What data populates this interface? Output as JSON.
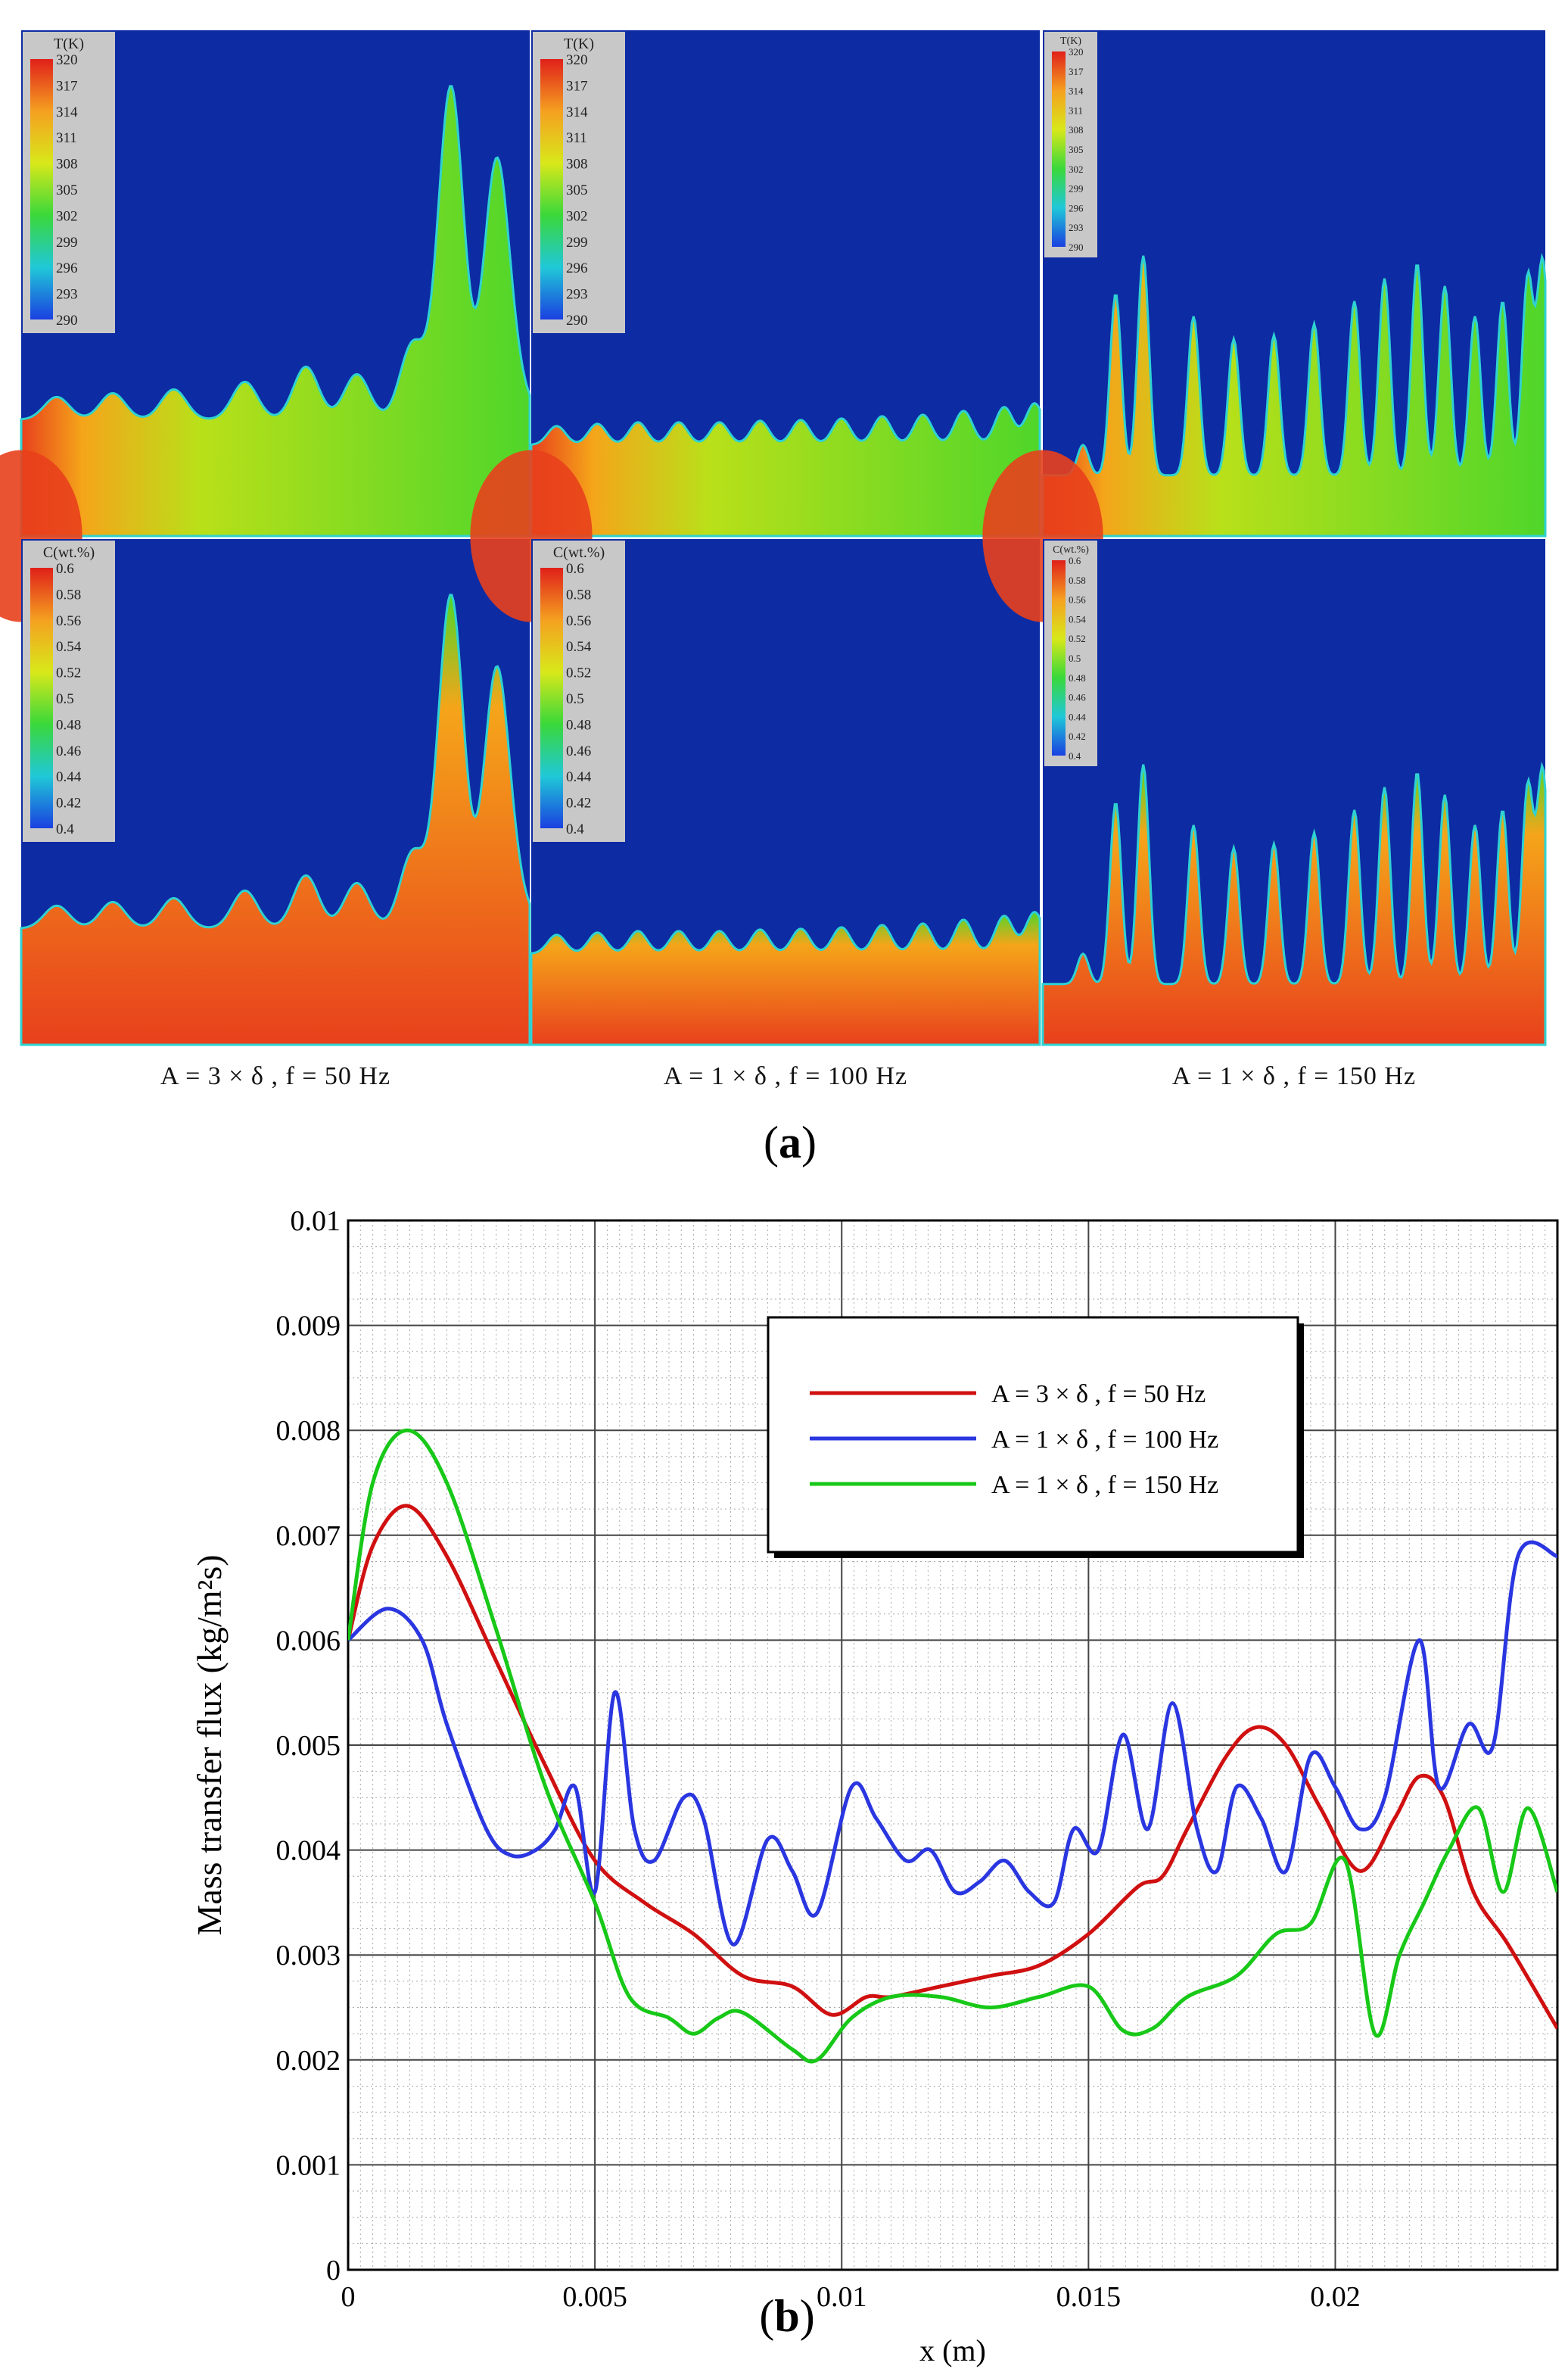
{
  "panel_a": {
    "label": "a",
    "columns": [
      {
        "caption": "A = 3 × δ , f = 50 Hz",
        "style": "large"
      },
      {
        "caption": "A = 1 × δ , f = 100 Hz",
        "style": "regular"
      },
      {
        "caption": "A = 1 × δ , f = 150 Hz",
        "style": "fine"
      }
    ],
    "temperature_legend": {
      "title": "T(K)",
      "levels": [
        "320",
        "317",
        "314",
        "311",
        "308",
        "305",
        "302",
        "299",
        "296",
        "293",
        "290"
      ]
    },
    "concentration_legend": {
      "title": "C(wt.%)",
      "levels": [
        "0.6",
        "0.58",
        "0.56",
        "0.54",
        "0.52",
        "0.5",
        "0.48",
        "0.46",
        "0.44",
        "0.42",
        "0.4"
      ]
    },
    "colors": {
      "background": "#0d2ba3",
      "hot": "#e8401c",
      "warm": "#f5a51a",
      "mid": "#b9e019",
      "film": "#4fd62a",
      "edge": "#2fd2d2"
    }
  },
  "panel_b": {
    "label": "b"
  },
  "chart_data": {
    "type": "line",
    "title": "",
    "xlabel": "x (m)",
    "ylabel": "Mass transfer flux (kg/m²s)",
    "xlim": [
      0,
      0.0245
    ],
    "ylim": [
      0,
      0.01
    ],
    "xticks": [
      0,
      0.005,
      0.01,
      0.015,
      0.02
    ],
    "xtick_labels": [
      "0",
      "0.005",
      "0.01",
      "0.015",
      "0.02"
    ],
    "yticks": [
      0,
      0.001,
      0.002,
      0.003,
      0.004,
      0.005,
      0.006,
      0.007,
      0.008,
      0.009,
      0.01
    ],
    "ytick_labels": [
      "0",
      "0.001",
      "0.002",
      "0.003",
      "0.004",
      "0.005",
      "0.006",
      "0.007",
      "0.008",
      "0.009",
      "0.01"
    ],
    "grid": true,
    "legend_position": "top-right",
    "series": [
      {
        "name": "A = 3 × δ , f = 50 Hz",
        "color": "#d01010",
        "x": [
          0,
          0.0005,
          0.0012,
          0.002,
          0.003,
          0.004,
          0.005,
          0.006,
          0.007,
          0.008,
          0.009,
          0.0098,
          0.0105,
          0.011,
          0.012,
          0.013,
          0.014,
          0.015,
          0.016,
          0.0165,
          0.017,
          0.0178,
          0.0184,
          0.019,
          0.0197,
          0.0205,
          0.0212,
          0.0217,
          0.0222,
          0.0228,
          0.0235,
          0.0245
        ],
        "y": [
          0.006,
          0.0069,
          0.00728,
          0.0068,
          0.0058,
          0.0048,
          0.0039,
          0.0035,
          0.0032,
          0.0028,
          0.0027,
          0.00243,
          0.0026,
          0.0026,
          0.0027,
          0.0028,
          0.0029,
          0.0032,
          0.00365,
          0.00375,
          0.0042,
          0.0049,
          0.00517,
          0.005,
          0.0044,
          0.0038,
          0.0043,
          0.0047,
          0.0045,
          0.0036,
          0.0031,
          0.0023
        ]
      },
      {
        "name": "A = 1 × δ , f = 100 Hz",
        "color": "#2a36e0",
        "x": [
          0,
          0.0008,
          0.0015,
          0.002,
          0.0028,
          0.0033,
          0.0038,
          0.0042,
          0.0046,
          0.005,
          0.0054,
          0.0058,
          0.0062,
          0.0068,
          0.0072,
          0.0078,
          0.0085,
          0.009,
          0.0095,
          0.0102,
          0.0107,
          0.0113,
          0.0118,
          0.0123,
          0.0128,
          0.0133,
          0.0138,
          0.0143,
          0.0147,
          0.0152,
          0.0157,
          0.0162,
          0.0167,
          0.0172,
          0.0176,
          0.018,
          0.0185,
          0.019,
          0.0195,
          0.02,
          0.0205,
          0.021,
          0.0217,
          0.0221,
          0.0227,
          0.0232,
          0.0237,
          0.0245
        ],
        "y": [
          0.006,
          0.0063,
          0.006,
          0.0052,
          0.0042,
          0.00395,
          0.004,
          0.0042,
          0.0046,
          0.0036,
          0.0055,
          0.0042,
          0.0039,
          0.0045,
          0.0043,
          0.0031,
          0.0041,
          0.0038,
          0.0034,
          0.0046,
          0.0043,
          0.0039,
          0.004,
          0.0036,
          0.0037,
          0.0039,
          0.0036,
          0.0035,
          0.0042,
          0.004,
          0.0051,
          0.0042,
          0.0054,
          0.0042,
          0.0038,
          0.0046,
          0.0043,
          0.0038,
          0.0049,
          0.0046,
          0.0042,
          0.0045,
          0.006,
          0.0046,
          0.0052,
          0.005,
          0.0068,
          0.0068
        ]
      },
      {
        "name": "A = 1 × δ , f = 150 Hz",
        "color": "#18c818",
        "x": [
          0,
          0.0005,
          0.0012,
          0.002,
          0.003,
          0.004,
          0.005,
          0.0057,
          0.0065,
          0.007,
          0.0075,
          0.008,
          0.009,
          0.0095,
          0.0102,
          0.011,
          0.012,
          0.013,
          0.014,
          0.015,
          0.0157,
          0.0163,
          0.017,
          0.018,
          0.0188,
          0.0195,
          0.0202,
          0.0208,
          0.0213,
          0.0218,
          0.0223,
          0.0229,
          0.0234,
          0.0239,
          0.0245
        ],
        "y": [
          0.006,
          0.0075,
          0.008,
          0.0075,
          0.0061,
          0.0046,
          0.0035,
          0.0026,
          0.0024,
          0.00225,
          0.0024,
          0.00245,
          0.0021,
          0.002,
          0.0024,
          0.0026,
          0.0026,
          0.0025,
          0.0026,
          0.0027,
          0.00228,
          0.0023,
          0.0026,
          0.0028,
          0.0032,
          0.0033,
          0.0039,
          0.00225,
          0.003,
          0.0035,
          0.004,
          0.0044,
          0.0036,
          0.0044,
          0.0036
        ]
      }
    ]
  }
}
